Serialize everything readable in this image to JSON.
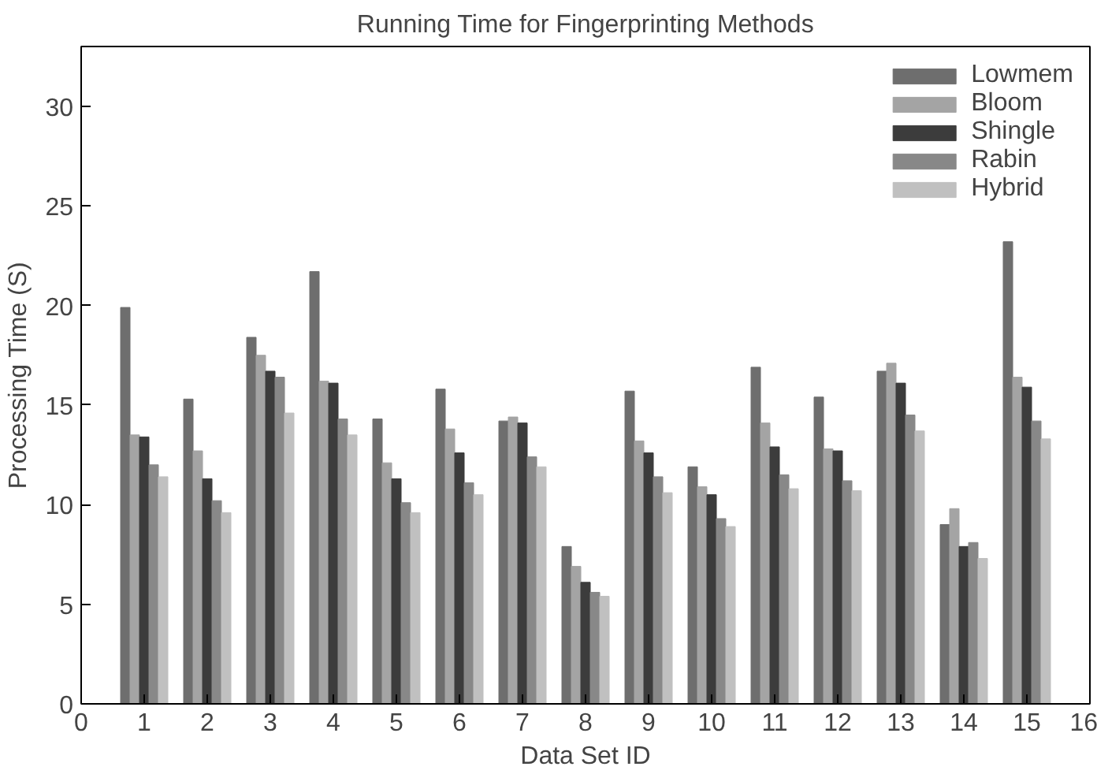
{
  "chart_data": {
    "type": "bar",
    "title": "Running Time for Fingerprinting Methods",
    "xlabel": "Data Set ID",
    "ylabel": "Processing Time (S)",
    "x": [
      1,
      2,
      3,
      4,
      5,
      6,
      7,
      8,
      9,
      10,
      11,
      12,
      13,
      14,
      15
    ],
    "xlim": [
      0,
      16
    ],
    "xticks": [
      0,
      1,
      2,
      3,
      4,
      5,
      6,
      7,
      8,
      9,
      10,
      11,
      12,
      13,
      14,
      15,
      16
    ],
    "ylim": [
      0,
      33
    ],
    "yticks": [
      0,
      5,
      10,
      15,
      20,
      25,
      30
    ],
    "grid": false,
    "legend": "top right",
    "series": [
      {
        "name": "Lowmem",
        "color": "#6e6e6e",
        "values": [
          19.9,
          15.3,
          18.4,
          21.7,
          14.3,
          15.8,
          14.2,
          7.9,
          15.7,
          11.9,
          16.9,
          15.4,
          16.7,
          9.0,
          23.2
        ]
      },
      {
        "name": "Bloom",
        "color": "#a4a4a4",
        "values": [
          13.5,
          12.7,
          17.5,
          16.2,
          12.1,
          13.8,
          14.4,
          6.9,
          13.2,
          10.9,
          14.1,
          12.8,
          17.1,
          9.8,
          16.4
        ]
      },
      {
        "name": "Shingle",
        "color": "#3c3c3c",
        "values": [
          13.4,
          11.3,
          16.7,
          16.1,
          11.3,
          12.6,
          14.1,
          6.1,
          12.6,
          10.5,
          12.9,
          12.7,
          16.1,
          7.9,
          15.9
        ]
      },
      {
        "name": "Rabin",
        "color": "#888888",
        "values": [
          12.0,
          10.2,
          16.4,
          14.3,
          10.1,
          11.1,
          12.4,
          5.6,
          11.4,
          9.3,
          11.5,
          11.2,
          14.5,
          8.1,
          14.2
        ]
      },
      {
        "name": "Hybrid",
        "color": "#c0c0c0",
        "values": [
          11.4,
          9.6,
          14.6,
          13.5,
          9.6,
          10.5,
          11.9,
          5.4,
          10.6,
          8.9,
          10.8,
          10.7,
          13.7,
          7.3,
          13.3
        ]
      }
    ]
  }
}
